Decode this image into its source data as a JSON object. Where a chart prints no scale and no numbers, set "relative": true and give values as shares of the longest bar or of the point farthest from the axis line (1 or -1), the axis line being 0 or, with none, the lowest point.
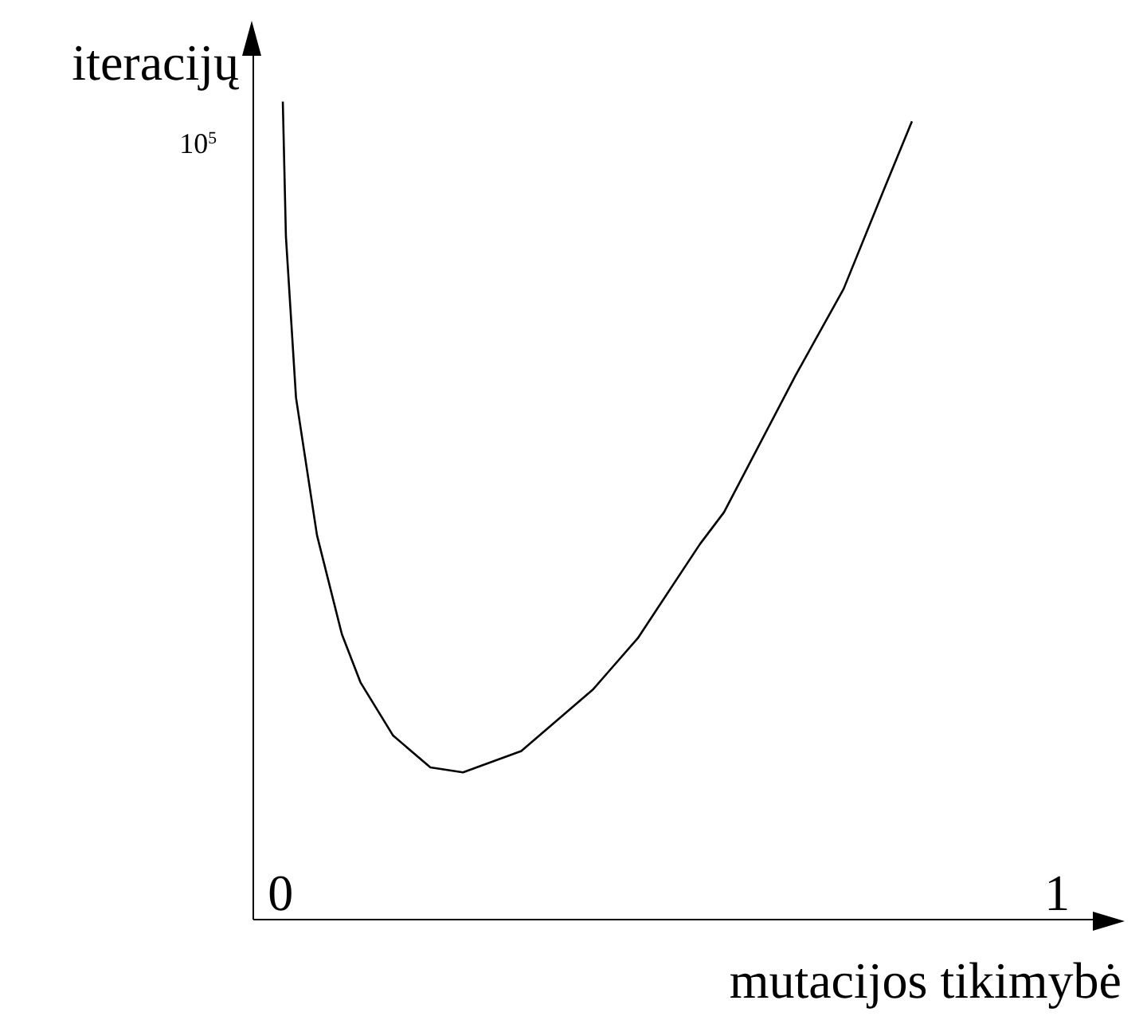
{
  "chart_data": {
    "type": "line",
    "xlabel": "mutacijos tikimybė",
    "ylabel": "iteracijų",
    "relative": true,
    "annotations": [
      "10$^{5}$"
    ],
    "xlim": [
      -0.035,
      1.05
    ],
    "xticks": [
      0,
      1
    ],
    "marker": "none",
    "line_style": "solid",
    "series": [
      {
        "color": "#000000",
        "x": [
          0.003,
          0.007,
          0.02,
          0.047,
          0.079,
          0.103,
          0.145,
          0.193,
          0.235,
          0.31,
          0.402,
          0.46,
          0.54,
          0.571,
          0.663,
          0.725,
          0.775,
          0.813
        ],
        "values": [
          1.0,
          0.835,
          0.638,
          0.47,
          0.349,
          0.29,
          0.225,
          0.186,
          0.18,
          0.206,
          0.281,
          0.344,
          0.459,
          0.498,
          0.665,
          0.771,
          0.888,
          0.976
        ]
      }
    ]
  }
}
